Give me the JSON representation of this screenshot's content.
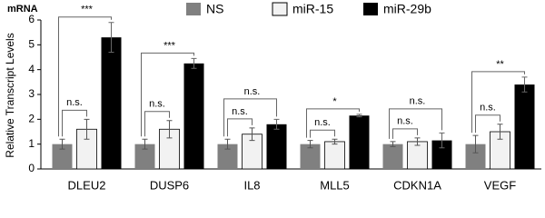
{
  "chart_data": {
    "type": "bar",
    "title": "mRNA",
    "ylabel": "Relative Transcript Levels",
    "categories": [
      "DLEU2",
      "DUSP6",
      "IL8",
      "MLL5",
      "CDKN1A",
      "VEGF"
    ],
    "series": [
      {
        "name": "NS",
        "color": "#808080",
        "values": [
          1,
          1,
          1,
          1,
          1,
          1
        ],
        "errors": [
          0.2,
          0.2,
          0.2,
          0.15,
          0.1,
          0.35
        ]
      },
      {
        "name": "miR-15",
        "color": "#f2f2f2",
        "values": [
          1.6,
          1.6,
          1.4,
          1.1,
          1.1,
          1.5
        ],
        "errors": [
          0.4,
          0.35,
          0.25,
          0.1,
          0.15,
          0.3
        ]
      },
      {
        "name": "miR-29b",
        "color": "#000000",
        "values": [
          5.3,
          4.25,
          1.8,
          2.15,
          1.15,
          3.4
        ],
        "errors": [
          0.6,
          0.2,
          0.2,
          0.05,
          0.3,
          0.3
        ]
      }
    ],
    "significance": [
      [
        "n.s.",
        "***"
      ],
      [
        "n.s.",
        "***"
      ],
      [
        "n.s.",
        "n.s."
      ],
      [
        "n.s.",
        "*"
      ],
      [
        "n.s.",
        "n.s."
      ],
      [
        "n.s.",
        "**"
      ]
    ],
    "ylim": [
      0,
      6
    ],
    "yticks": [
      0,
      1,
      2,
      3,
      4,
      5,
      6
    ],
    "grid": false
  }
}
